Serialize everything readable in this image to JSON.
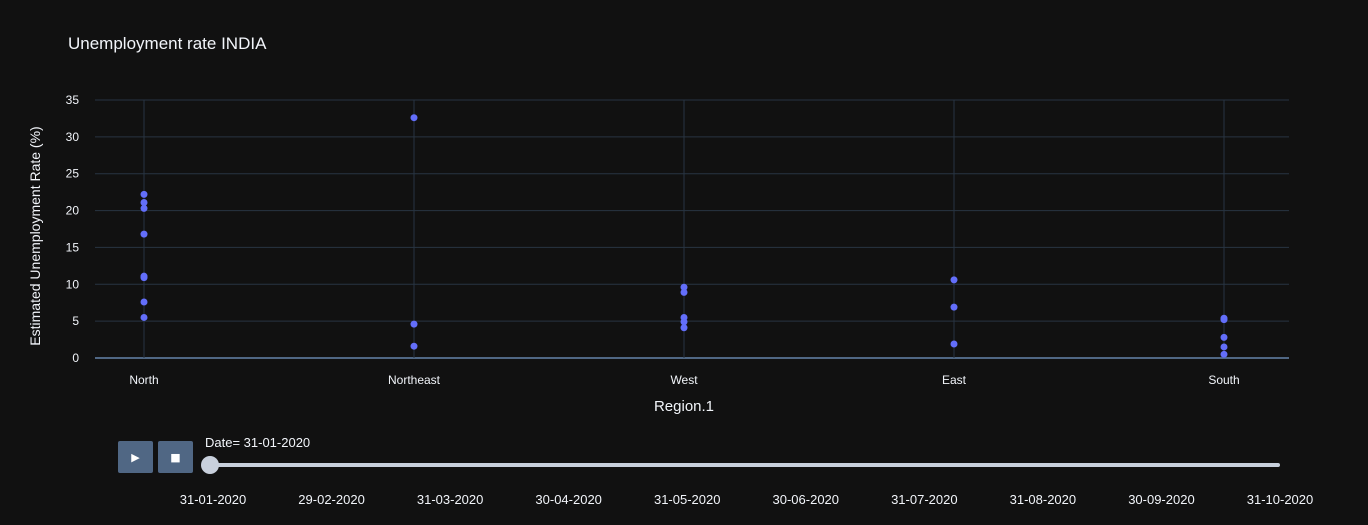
{
  "chart_data": {
    "type": "scatter",
    "title": "Unemployment rate INDIA",
    "xlabel": "Region.1",
    "ylabel": "Estimated Unemployment Rate (%)",
    "categories": [
      "North",
      "Northeast",
      "West",
      "East",
      "South"
    ],
    "ylim": [
      0,
      35
    ],
    "yticks": [
      0,
      5,
      10,
      15,
      20,
      25,
      30,
      35
    ],
    "grid": true,
    "marker_color": "#636efa",
    "points": [
      {
        "x": "North",
        "y": 22.2
      },
      {
        "x": "North",
        "y": 21.1
      },
      {
        "x": "North",
        "y": 20.3
      },
      {
        "x": "North",
        "y": 16.8
      },
      {
        "x": "North",
        "y": 11.1
      },
      {
        "x": "North",
        "y": 10.9
      },
      {
        "x": "North",
        "y": 7.6
      },
      {
        "x": "North",
        "y": 5.5
      },
      {
        "x": "Northeast",
        "y": 32.6
      },
      {
        "x": "Northeast",
        "y": 4.6
      },
      {
        "x": "Northeast",
        "y": 1.6
      },
      {
        "x": "West",
        "y": 9.6
      },
      {
        "x": "West",
        "y": 8.9
      },
      {
        "x": "West",
        "y": 5.5
      },
      {
        "x": "West",
        "y": 4.9
      },
      {
        "x": "West",
        "y": 4.1
      },
      {
        "x": "East",
        "y": 10.6
      },
      {
        "x": "East",
        "y": 6.9
      },
      {
        "x": "East",
        "y": 1.9
      },
      {
        "x": "South",
        "y": 5.4
      },
      {
        "x": "South",
        "y": 5.2
      },
      {
        "x": "South",
        "y": 2.8
      },
      {
        "x": "South",
        "y": 1.5
      },
      {
        "x": "South",
        "y": 0.5
      }
    ]
  },
  "colors": {
    "background": "#111111",
    "grid": "#283442",
    "marker": "#636efa",
    "button": "#506784",
    "slider": "#c8d0dc"
  },
  "animation": {
    "play_icon": "play-icon",
    "stop_icon": "stop-icon",
    "play_glyph": "▶",
    "stop_glyph": "■"
  },
  "slider": {
    "current_label": "Date= 31-01-2020",
    "value_fraction": 0,
    "steps": [
      "31-01-2020",
      "29-02-2020",
      "31-03-2020",
      "30-04-2020",
      "31-05-2020",
      "30-06-2020",
      "31-07-2020",
      "31-08-2020",
      "30-09-2020",
      "31-10-2020"
    ]
  }
}
